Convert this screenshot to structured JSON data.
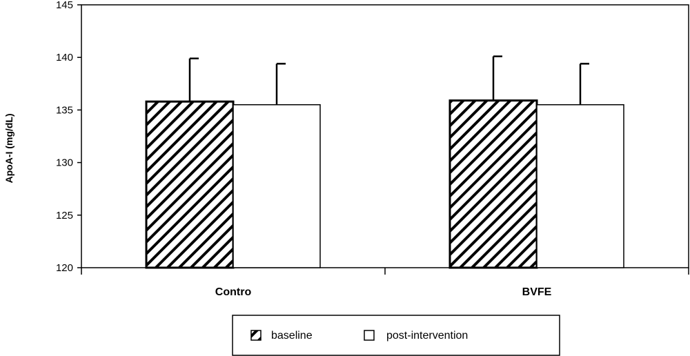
{
  "chart_data": {
    "type": "bar",
    "title": "",
    "xlabel": "",
    "ylabel": "ApoA-I (mg/dL)",
    "ylim": [
      120,
      145
    ],
    "yticks": [
      120,
      125,
      130,
      135,
      140,
      145
    ],
    "categories": [
      "Contro",
      "BVFE"
    ],
    "series": [
      {
        "name": "baseline",
        "values": [
          135.8,
          135.9
        ],
        "errors": [
          4.1,
          4.2
        ],
        "fill": "hatched"
      },
      {
        "name": "post-intervention",
        "values": [
          135.5,
          135.5
        ],
        "errors": [
          3.9,
          3.9
        ],
        "fill": "white"
      }
    ],
    "grid": false,
    "legend_position": "bottom"
  }
}
